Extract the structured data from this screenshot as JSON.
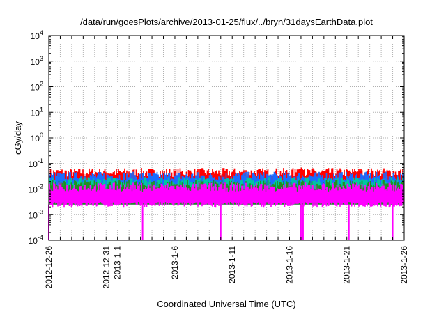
{
  "chart_data": {
    "type": "area",
    "title": "/data/run/goesPlots/archive/2013-01-25/flux/../bryn/31daysEarthData.plot",
    "xlabel": "Coordinated Universal Time (UTC)",
    "ylabel": "cGy/day",
    "yscale": "log",
    "ylim": [
      0.0001,
      10000
    ],
    "xlim": [
      "2012-12-26",
      "2013-01-26"
    ],
    "grid": true,
    "x_ticks": [
      "2012-12-26",
      "2012-12-31",
      "2013-1-1",
      "2013-1-6",
      "2013-1-11",
      "2013-1-16",
      "2013-1-21",
      "2013-1-26"
    ],
    "y_ticks": [
      {
        "value": 0.0001,
        "base": "10",
        "exp": "-4"
      },
      {
        "value": 0.001,
        "base": "10",
        "exp": "-3"
      },
      {
        "value": 0.01,
        "base": "10",
        "exp": "-2"
      },
      {
        "value": 0.1,
        "base": "10",
        "exp": "-1"
      },
      {
        "value": 1,
        "base": "10",
        "exp": "0"
      },
      {
        "value": 10,
        "base": "10",
        "exp": "1"
      },
      {
        "value": 100,
        "base": "10",
        "exp": "2"
      },
      {
        "value": 1000,
        "base": "10",
        "exp": "3"
      },
      {
        "value": 10000,
        "base": "10",
        "exp": "4"
      }
    ],
    "series": [
      {
        "color": "#ff0000",
        "typical_upper": 0.045,
        "spikes": [
          {
            "date": "2013-01-17",
            "value": 0.07
          },
          {
            "date": "2013-01-22",
            "value": 0.055
          }
        ]
      },
      {
        "color": "#1a6cff",
        "typical_upper": 0.032
      },
      {
        "color": "#00c8a0",
        "typical_upper": 0.02
      },
      {
        "color": "#228b22",
        "typical_upper": 0.015
      },
      {
        "color": "#ff00ff",
        "typical_upper": 0.012,
        "typical_lower": 0.0025,
        "dropouts": [
          "2012-12-26",
          "2013-01-03",
          "2013-01-10",
          "2013-01-17",
          "2013-01-17",
          "2013-01-21",
          "2013-01-25"
        ]
      }
    ]
  }
}
